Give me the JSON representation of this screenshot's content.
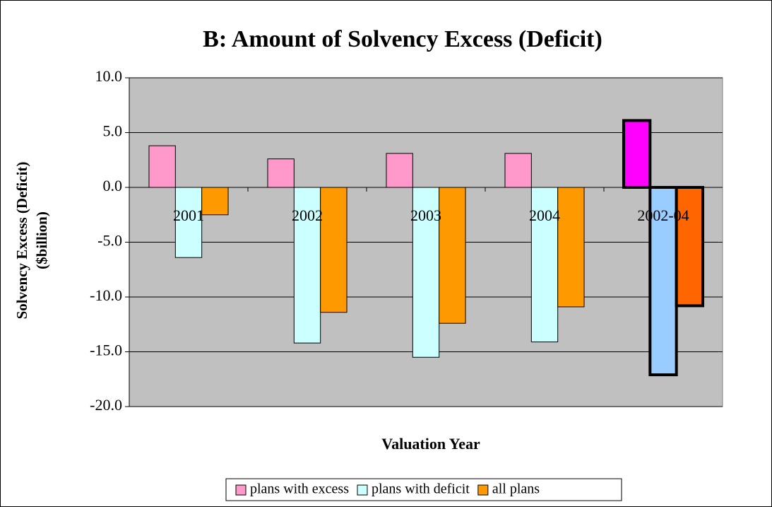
{
  "chart_data": {
    "type": "bar",
    "title": "B: Amount of Solvency Excess (Deficit)",
    "xlabel": "Valuation Year",
    "ylabel": [
      "Solvency Excess (Deficit)",
      "($billion)"
    ],
    "categories": [
      "2001",
      "2002",
      "2003",
      "2004",
      "2002-04"
    ],
    "series": [
      {
        "name": "plans with excess",
        "color": "#ff99cc",
        "colors": [
          "#ff99cc",
          "#ff99cc",
          "#ff99cc",
          "#ff99cc",
          "#ff00ff"
        ],
        "values": [
          3.8,
          2.6,
          3.1,
          3.1,
          6.1
        ]
      },
      {
        "name": "plans with deficit",
        "color": "#ccffff",
        "colors": [
          "#ccffff",
          "#ccffff",
          "#ccffff",
          "#ccffff",
          "#99ccff"
        ],
        "values": [
          -6.4,
          -14.2,
          -15.5,
          -14.1,
          -17.1
        ]
      },
      {
        "name": "all plans",
        "color": "#ff9900",
        "colors": [
          "#ff9900",
          "#ff9900",
          "#ff9900",
          "#ff9900",
          "#ff6600"
        ],
        "values": [
          -2.5,
          -11.4,
          -12.4,
          -10.9,
          -10.8
        ]
      }
    ],
    "ylim": [
      -20,
      10
    ],
    "yticks": [
      {
        "value": -20,
        "label": "-20.0"
      },
      {
        "value": -15,
        "label": "-15.0"
      },
      {
        "value": -10,
        "label": "-10.0"
      },
      {
        "value": -5,
        "label": "-5.0"
      },
      {
        "value": 0,
        "label": "0.0"
      },
      {
        "value": 5,
        "label": "5.0"
      },
      {
        "value": 10,
        "label": "10.0"
      }
    ],
    "grid": true,
    "legend": "bottom"
  }
}
